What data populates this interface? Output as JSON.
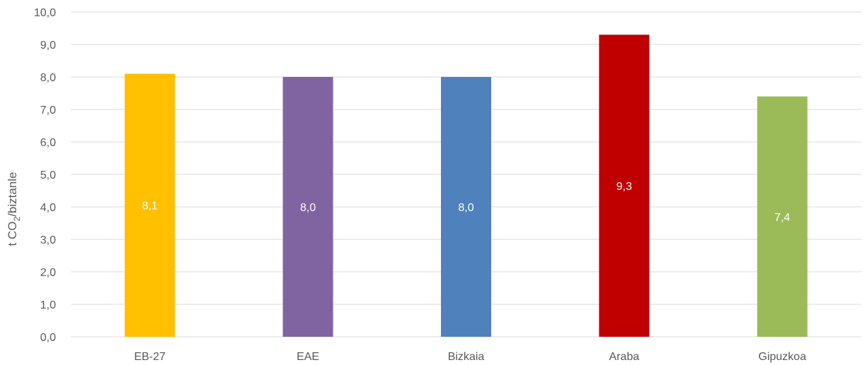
{
  "chart_data": {
    "type": "bar",
    "title": "",
    "xlabel": "",
    "ylabel": {
      "prefix": "t CO",
      "subscript": "2",
      "suffix": "/biztanle"
    },
    "categories": [
      "EB-27",
      "EAE",
      "Bizkaia",
      "Araba",
      "Gipuzkoa"
    ],
    "values": [
      8.1,
      8.0,
      8.0,
      9.3,
      7.4
    ],
    "data_labels": [
      "8,1",
      "8,0",
      "8,0",
      "9,3",
      "7,4"
    ],
    "bar_colors": [
      "#FFC000",
      "#8064A2",
      "#4F81BD",
      "#C00000",
      "#9BBB59"
    ],
    "ylim": [
      0,
      10
    ],
    "ytick_step": 1,
    "ytick_labels": [
      "0,0",
      "1,0",
      "2,0",
      "3,0",
      "4,0",
      "5,0",
      "6,0",
      "7,0",
      "8,0",
      "9,0",
      "10,0"
    ],
    "grid": true,
    "legend": "none"
  }
}
